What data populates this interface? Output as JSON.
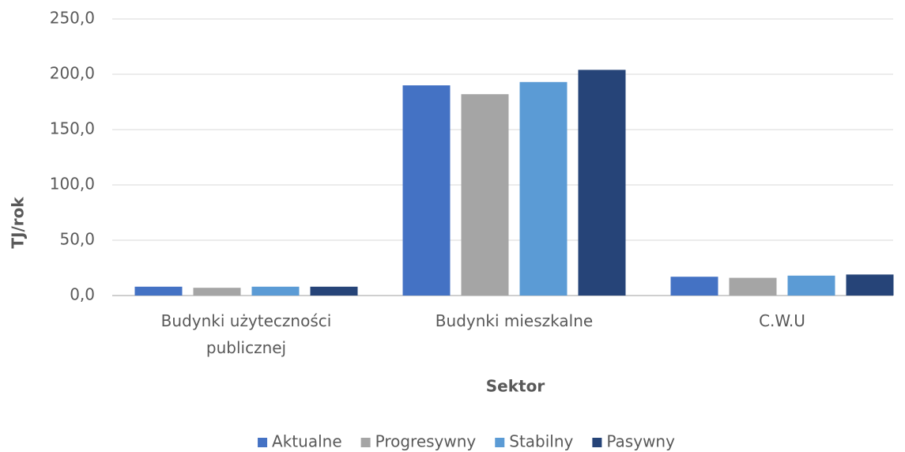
{
  "chart_data": {
    "type": "bar",
    "categories": [
      "Budynki użyteczności publicznej",
      "Budynki mieszkalne",
      "C.W.U"
    ],
    "series": [
      {
        "name": "Aktualne",
        "color": "#4472c4",
        "values": [
          8,
          190,
          17
        ]
      },
      {
        "name": "Progresywny",
        "color": "#a5a5a5",
        "values": [
          7,
          182,
          16
        ]
      },
      {
        "name": "Stabilny",
        "color": "#5b9bd5",
        "values": [
          8,
          193,
          18
        ]
      },
      {
        "name": "Pasywny",
        "color": "#264478",
        "values": [
          8,
          204,
          19
        ]
      }
    ],
    "ylim": [
      0,
      250
    ],
    "yticks": [
      {
        "value": 0,
        "label": "0,0"
      },
      {
        "value": 50,
        "label": "50,0"
      },
      {
        "value": 100,
        "label": "100,0"
      },
      {
        "value": 150,
        "label": "150,0"
      },
      {
        "value": 200,
        "label": "200,0"
      },
      {
        "value": 250,
        "label": "250,0"
      }
    ],
    "ylabel": "TJ/rok",
    "xlabel": "Sektor",
    "grid": true,
    "legend": "bottom"
  }
}
